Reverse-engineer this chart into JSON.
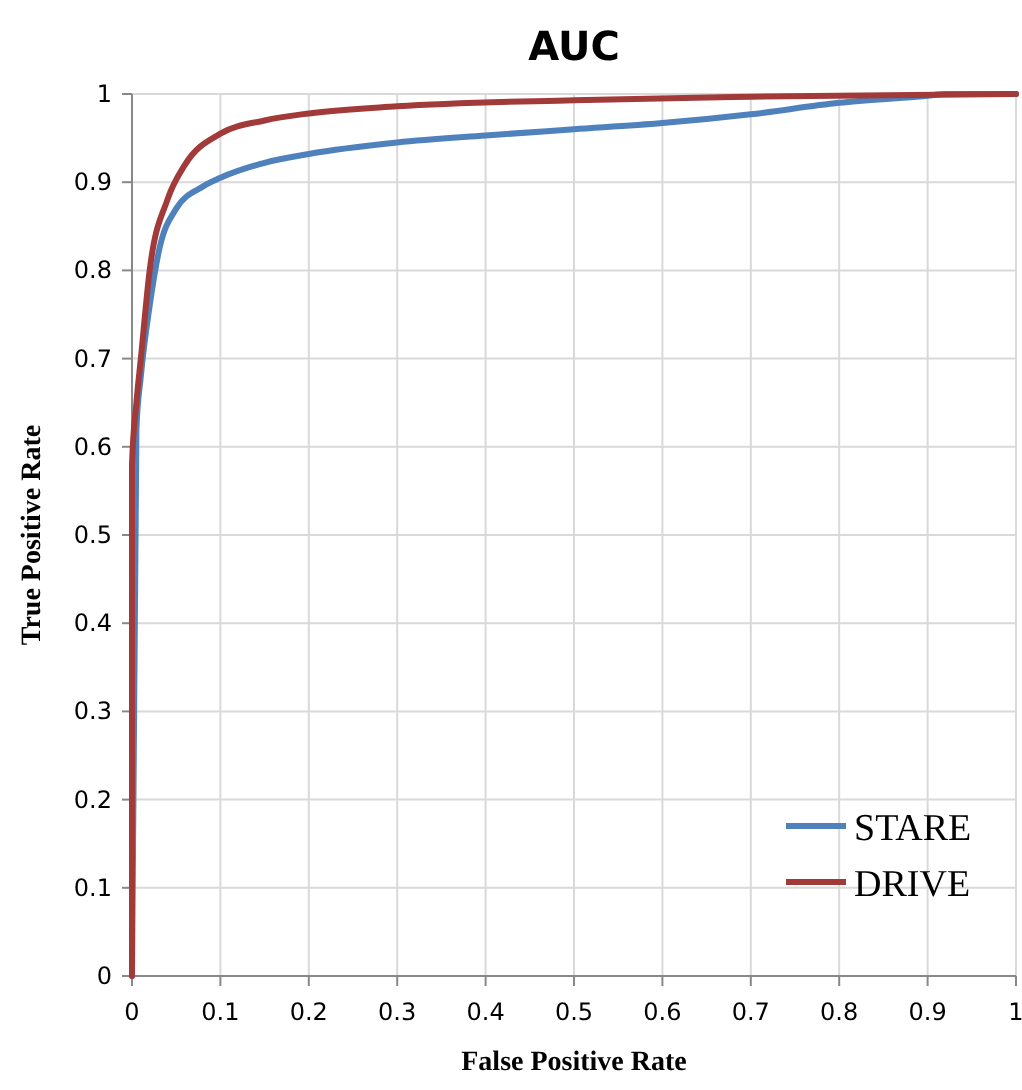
{
  "chart_data": {
    "type": "line",
    "title": "AUC",
    "xlabel": "False Positive Rate",
    "ylabel": "True Positive Rate",
    "xlim": [
      0,
      1
    ],
    "ylim": [
      0,
      1
    ],
    "xticks": [
      0,
      0.1,
      0.2,
      0.3,
      0.4,
      0.5,
      0.6,
      0.7,
      0.8,
      0.9,
      1
    ],
    "yticks": [
      0,
      0.1,
      0.2,
      0.3,
      0.4,
      0.5,
      0.6,
      0.7,
      0.8,
      0.9,
      1
    ],
    "grid": true,
    "legend": "bottom right",
    "marker": "none",
    "line_style": "solid",
    "series": [
      {
        "name": "STARE",
        "color": "#4f81bd",
        "x": [
          0,
          0.005,
          0.01,
          0.02,
          0.03,
          0.05,
          0.08,
          0.1,
          0.15,
          0.2,
          0.3,
          0.4,
          0.5,
          0.6,
          0.7,
          0.8,
          0.9,
          0.92,
          1
        ],
        "values": [
          0,
          0.62,
          0.68,
          0.76,
          0.82,
          0.87,
          0.895,
          0.905,
          0.922,
          0.932,
          0.945,
          0.953,
          0.96,
          0.967,
          0.977,
          0.99,
          0.998,
          1,
          1
        ]
      },
      {
        "name": "DRIVE",
        "color": "#a33a3a",
        "x": [
          0,
          0,
          0.005,
          0.01,
          0.02,
          0.04,
          0.06,
          0.1,
          0.15,
          0.2,
          0.3,
          0.5,
          0.7,
          1
        ],
        "values": [
          0,
          0.58,
          0.65,
          0.7,
          0.8,
          0.88,
          0.92,
          0.955,
          0.97,
          0.978,
          0.986,
          0.993,
          0.997,
          1
        ]
      }
    ]
  }
}
